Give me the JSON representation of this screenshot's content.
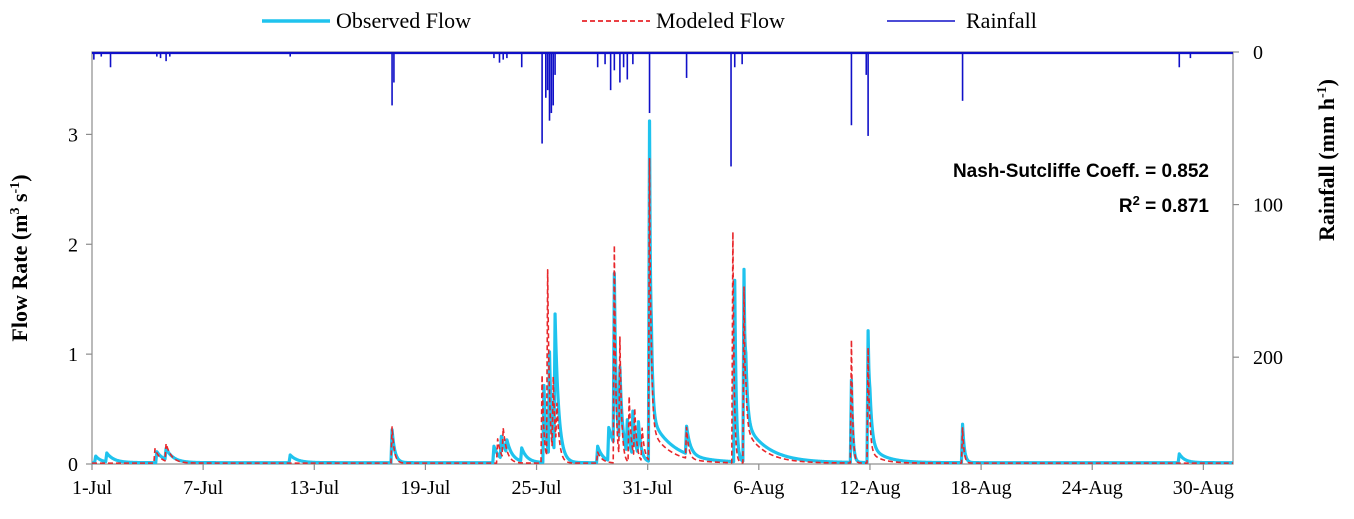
{
  "chart_data": {
    "type": "line",
    "x_type": "date",
    "period": "1-Jul to 31-Aug",
    "x_ticks": [
      "1-Jul",
      "7-Jul",
      "13-Jul",
      "19-Jul",
      "25-Jul",
      "31-Jul",
      "6-Aug",
      "12-Aug",
      "18-Aug",
      "24-Aug",
      "30-Aug"
    ],
    "x_tick_days": [
      0,
      6,
      12,
      18,
      24,
      30,
      36,
      42,
      48,
      54,
      60
    ],
    "x_range_days": [
      0,
      61.6
    ],
    "ylabel": "Flow Rate (m³ s⁻¹)",
    "ylabel_parts": {
      "pre": "Flow Rate (m",
      "sup1": "3",
      "mid": " s",
      "sup2": "-1",
      "post": ")"
    },
    "ylim": [
      0,
      3.75
    ],
    "y_ticks": [
      0,
      1,
      2,
      3
    ],
    "y2label": "Rainfall (mm h⁻¹)",
    "y2label_parts": {
      "pre": "Rainfall (mm h",
      "sup": "-1",
      "post": ")"
    },
    "y2lim": [
      0,
      270
    ],
    "y2_inverted": true,
    "y2_ticks": [
      0,
      100,
      200
    ],
    "grid": false,
    "legend_position": "top-center",
    "legend": [
      {
        "name": "Observed Flow",
        "color": "#1fc3ee",
        "style": "solid-thick"
      },
      {
        "name": "Modeled Flow",
        "color": "#e8262a",
        "style": "dashed"
      },
      {
        "name": "Rainfall",
        "color": "#1010c8",
        "style": "solid"
      }
    ],
    "annotations": {
      "nash": "Nash-Sutcliffe Coeff. = 0.852",
      "r2_prefix": "R",
      "r2_sup": "2",
      "r2_value": " = 0.871"
    },
    "series": [
      {
        "name": "Observed Flow",
        "color": "#1fc3ee",
        "peaks": [
          {
            "day": 0.2,
            "q": 0.06,
            "decay": 0.3
          },
          {
            "day": 0.8,
            "q": 0.08,
            "decay": 0.4
          },
          {
            "day": 3.5,
            "q": 0.1,
            "decay": 0.4
          },
          {
            "day": 4.0,
            "q": 0.1,
            "decay": 0.4
          },
          {
            "day": 10.7,
            "q": 0.07,
            "decay": 0.4
          },
          {
            "day": 16.2,
            "q": 0.3,
            "decay": 0.15
          },
          {
            "day": 21.7,
            "q": 0.15,
            "decay": 0.3
          },
          {
            "day": 22.1,
            "q": 0.2,
            "decay": 0.3
          },
          {
            "day": 22.4,
            "q": 0.12,
            "decay": 0.3
          },
          {
            "day": 23.2,
            "q": 0.12,
            "decay": 0.3
          },
          {
            "day": 24.4,
            "q": 0.7,
            "decay": 0.12
          },
          {
            "day": 24.7,
            "q": 0.95,
            "decay": 0.12
          },
          {
            "day": 25.0,
            "q": 1.27,
            "decay": 0.2
          },
          {
            "day": 27.3,
            "q": 0.15,
            "decay": 0.3
          },
          {
            "day": 27.9,
            "q": 0.3,
            "decay": 0.5
          },
          {
            "day": 28.2,
            "q": 1.55,
            "decay": 0.1
          },
          {
            "day": 28.5,
            "q": 0.7,
            "decay": 0.15
          },
          {
            "day": 28.9,
            "q": 0.3,
            "decay": 0.15
          },
          {
            "day": 29.2,
            "q": 0.4,
            "decay": 0.15
          },
          {
            "day": 29.5,
            "q": 0.3,
            "decay": 0.15
          },
          {
            "day": 30.1,
            "q": 3.1,
            "decay": 0.08
          },
          {
            "day": 30.2,
            "q": 0.4,
            "decay": 1.2
          },
          {
            "day": 32.1,
            "q": 0.25,
            "decay": 0.2
          },
          {
            "day": 34.7,
            "q": 1.65,
            "decay": 0.08
          },
          {
            "day": 35.2,
            "q": 1.75,
            "decay": 0.1
          },
          {
            "day": 35.3,
            "q": 0.35,
            "decay": 1.2
          },
          {
            "day": 41.0,
            "q": 0.75,
            "decay": 0.08
          },
          {
            "day": 41.9,
            "q": 1.2,
            "decay": 0.12
          },
          {
            "day": 42.0,
            "q": 0.15,
            "decay": 0.8
          },
          {
            "day": 47.0,
            "q": 0.35,
            "decay": 0.1
          },
          {
            "day": 58.7,
            "q": 0.08,
            "decay": 0.3
          }
        ]
      },
      {
        "name": "Modeled Flow",
        "color": "#e8262a",
        "peaks": [
          {
            "day": 3.4,
            "q": 0.13,
            "decay": 0.3
          },
          {
            "day": 4.0,
            "q": 0.16,
            "decay": 0.3
          },
          {
            "day": 16.2,
            "q": 0.33,
            "decay": 0.12
          },
          {
            "day": 21.9,
            "q": 0.22,
            "decay": 0.2
          },
          {
            "day": 22.2,
            "q": 0.27,
            "decay": 0.2
          },
          {
            "day": 24.3,
            "q": 0.8,
            "decay": 0.1
          },
          {
            "day": 24.6,
            "q": 1.72,
            "decay": 0.1
          },
          {
            "day": 24.9,
            "q": 0.7,
            "decay": 0.12
          },
          {
            "day": 25.1,
            "q": 0.4,
            "decay": 0.15
          },
          {
            "day": 27.3,
            "q": 0.1,
            "decay": 0.25
          },
          {
            "day": 28.2,
            "q": 1.98,
            "decay": 0.08
          },
          {
            "day": 28.5,
            "q": 1.1,
            "decay": 0.1
          },
          {
            "day": 29.0,
            "q": 0.6,
            "decay": 0.12
          },
          {
            "day": 29.3,
            "q": 0.45,
            "decay": 0.12
          },
          {
            "day": 29.7,
            "q": 0.3,
            "decay": 0.15
          },
          {
            "day": 30.1,
            "q": 2.75,
            "decay": 0.08
          },
          {
            "day": 30.2,
            "q": 0.3,
            "decay": 1.0
          },
          {
            "day": 32.1,
            "q": 0.28,
            "decay": 0.12
          },
          {
            "day": 34.6,
            "q": 2.1,
            "decay": 0.07
          },
          {
            "day": 35.2,
            "q": 1.6,
            "decay": 0.08
          },
          {
            "day": 35.3,
            "q": 0.3,
            "decay": 1.0
          },
          {
            "day": 41.0,
            "q": 1.12,
            "decay": 0.07
          },
          {
            "day": 41.9,
            "q": 1.05,
            "decay": 0.08
          },
          {
            "day": 42.0,
            "q": 0.1,
            "decay": 0.6
          },
          {
            "day": 47.0,
            "q": 0.32,
            "decay": 0.08
          }
        ]
      },
      {
        "name": "Rainfall",
        "color": "#1010c8",
        "events": [
          {
            "day": 0.1,
            "mm": 5
          },
          {
            "day": 0.5,
            "mm": 3
          },
          {
            "day": 1.0,
            "mm": 10
          },
          {
            "day": 3.5,
            "mm": 3
          },
          {
            "day": 3.7,
            "mm": 4
          },
          {
            "day": 4.0,
            "mm": 6
          },
          {
            "day": 4.2,
            "mm": 3
          },
          {
            "day": 10.7,
            "mm": 3
          },
          {
            "day": 16.2,
            "mm": 35
          },
          {
            "day": 16.3,
            "mm": 20
          },
          {
            "day": 21.7,
            "mm": 4
          },
          {
            "day": 22.0,
            "mm": 7
          },
          {
            "day": 22.2,
            "mm": 5
          },
          {
            "day": 22.4,
            "mm": 4
          },
          {
            "day": 23.2,
            "mm": 10
          },
          {
            "day": 24.3,
            "mm": 60
          },
          {
            "day": 24.5,
            "mm": 30
          },
          {
            "day": 24.6,
            "mm": 25
          },
          {
            "day": 24.7,
            "mm": 45
          },
          {
            "day": 24.8,
            "mm": 40
          },
          {
            "day": 24.9,
            "mm": 35
          },
          {
            "day": 25.0,
            "mm": 15
          },
          {
            "day": 27.3,
            "mm": 10
          },
          {
            "day": 27.7,
            "mm": 8
          },
          {
            "day": 28.0,
            "mm": 25
          },
          {
            "day": 28.2,
            "mm": 12
          },
          {
            "day": 28.5,
            "mm": 20
          },
          {
            "day": 28.7,
            "mm": 10
          },
          {
            "day": 28.9,
            "mm": 18
          },
          {
            "day": 29.2,
            "mm": 8
          },
          {
            "day": 30.1,
            "mm": 40
          },
          {
            "day": 32.1,
            "mm": 17
          },
          {
            "day": 34.5,
            "mm": 75
          },
          {
            "day": 34.7,
            "mm": 10
          },
          {
            "day": 35.1,
            "mm": 8
          },
          {
            "day": 41.0,
            "mm": 48
          },
          {
            "day": 41.9,
            "mm": 55
          },
          {
            "day": 41.8,
            "mm": 15
          },
          {
            "day": 47.0,
            "mm": 32
          },
          {
            "day": 58.7,
            "mm": 10
          },
          {
            "day": 59.3,
            "mm": 4
          }
        ]
      }
    ]
  }
}
